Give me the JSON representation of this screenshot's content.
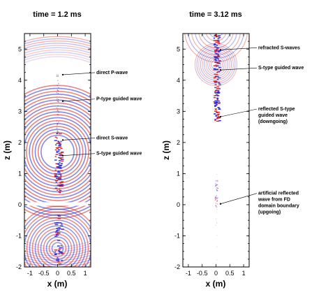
{
  "panels": [
    {
      "title": "time = 1.2 ms",
      "xlabel": "x (m)",
      "ylabel": "z (m)",
      "xlim": [
        -1.2,
        1.2
      ],
      "ylim": [
        -2,
        5.5
      ],
      "xticks": [
        "-1",
        "-0.5",
        "0",
        "0.5",
        "1"
      ],
      "yticks": [
        "-2",
        "-1",
        "0",
        "1",
        "2",
        "3",
        "4",
        "5"
      ],
      "annotations": [
        {
          "text": [
            "direct P-wave"
          ],
          "z": 4.2
        },
        {
          "text": [
            "P-type guided wave"
          ],
          "z": 3.35
        },
        {
          "text": [
            "direct S-wave"
          ],
          "z": 2.1
        },
        {
          "text": [
            "S-type guided wave"
          ],
          "z": 1.6
        }
      ]
    },
    {
      "title": "time = 3.12 ms",
      "xlabel": "x (m)",
      "ylabel": "z (m)",
      "xlim": [
        -1.2,
        1.2
      ],
      "ylim": [
        -2,
        5.5
      ],
      "xticks": [
        "-1",
        "-0.5",
        "0",
        "0.5",
        "1"
      ],
      "yticks": [
        "-2",
        "-1",
        "0",
        "1",
        "2",
        "3",
        "4",
        "5"
      ],
      "annotations": [
        {
          "text": [
            "refracted S-waves"
          ],
          "z": 5.0
        },
        {
          "text": [
            "S-type guided wave"
          ],
          "z": 4.35
        },
        {
          "text": [
            "reflected S-type",
            "guided wave",
            "(downgoing)"
          ],
          "z": 2.85
        },
        {
          "text": [
            "artificial reflected",
            "wave from FD",
            "domain boundary",
            "(upgoing)"
          ],
          "z": 0.05
        }
      ]
    }
  ],
  "colors": {
    "positive": "#d42020",
    "negative": "#2828c8",
    "frame": "#000000"
  }
}
